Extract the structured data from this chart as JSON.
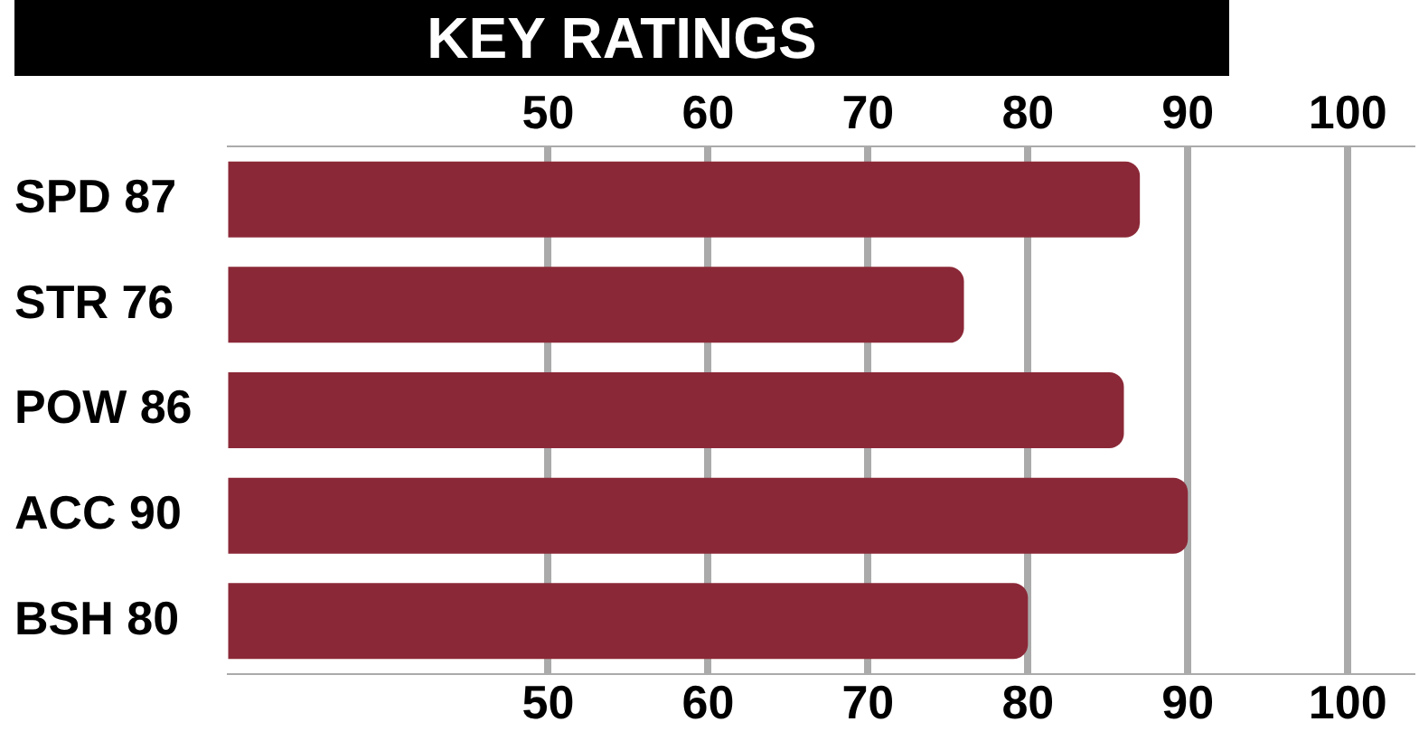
{
  "chart_data": {
    "type": "bar",
    "orientation": "horizontal",
    "title": "KEY RATINGS",
    "categories": [
      "SPD 87",
      "STR 76",
      "POW 86",
      "ACC 90",
      "BSH 80"
    ],
    "values": [
      87,
      76,
      86,
      90,
      80
    ],
    "color": "#8b2837",
    "xlim": [
      30,
      104
    ],
    "xticks": [
      50,
      60,
      70,
      80,
      90,
      100
    ],
    "x2lim": [
      30,
      104
    ],
    "x2ticks": [
      50,
      60,
      70,
      80,
      90,
      100
    ],
    "grid": "x",
    "legend": false
  }
}
